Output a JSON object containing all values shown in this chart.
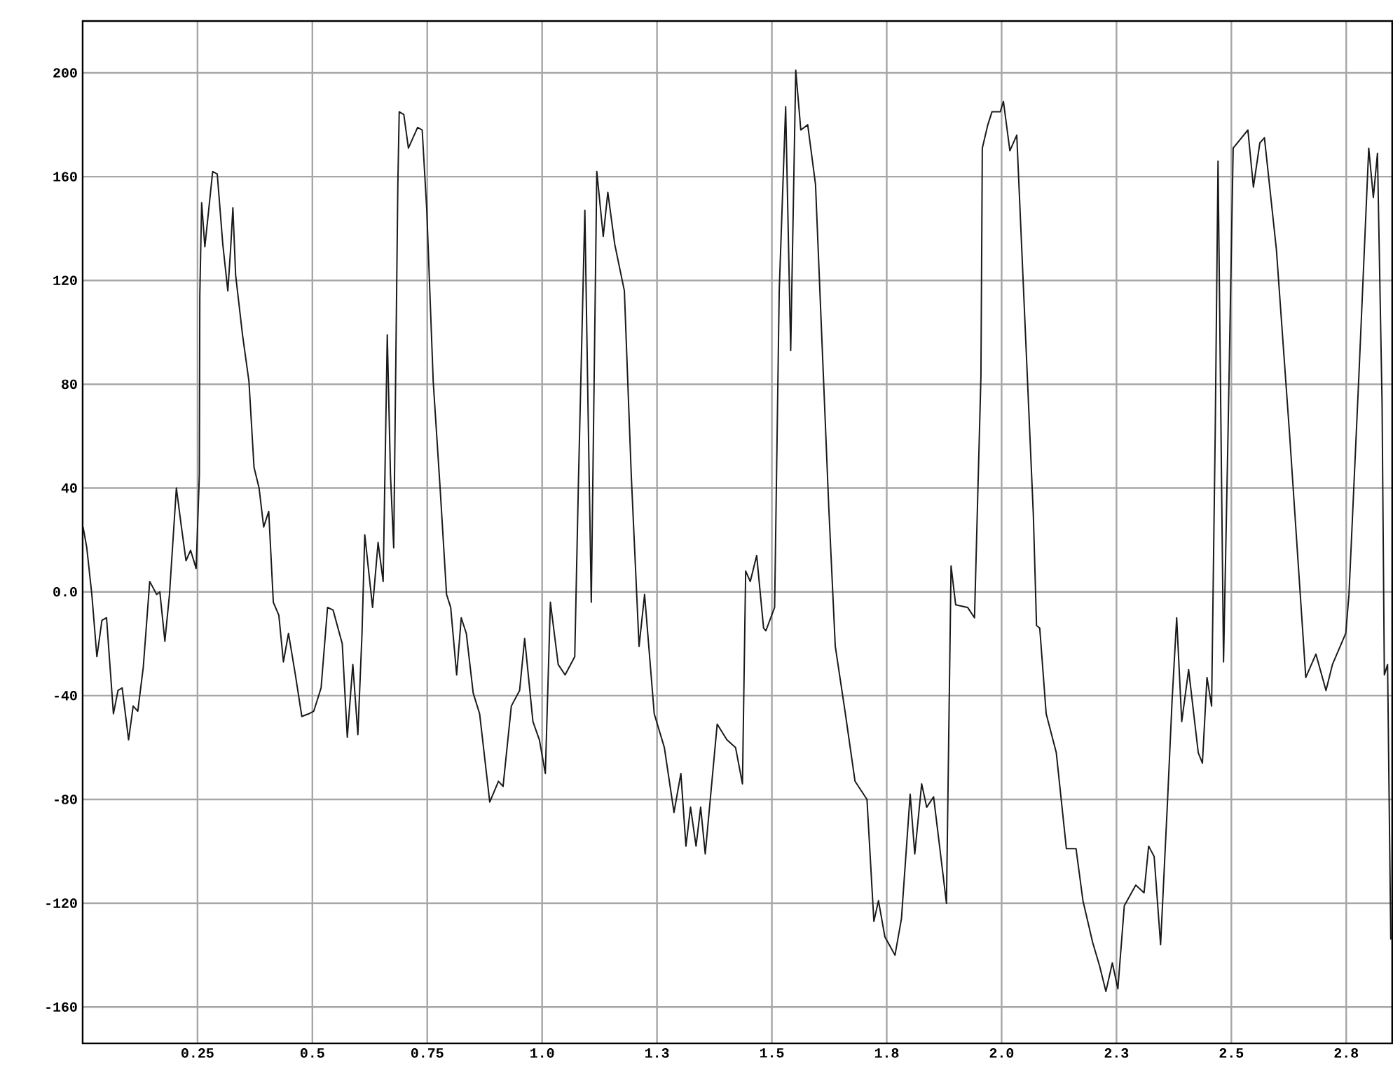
{
  "chart_data": {
    "type": "line",
    "color": "#1a1a1a",
    "grid": true,
    "xlim": [
      0,
      2.85
    ],
    "ylim": [
      -174,
      220
    ],
    "xticks": [
      0.25,
      0.5,
      0.75,
      {
        "value": 1,
        "label": "1.0"
      },
      {
        "value": 1.25,
        "label": "1.3"
      },
      1.5,
      {
        "value": 1.75,
        "label": "1.8"
      },
      {
        "value": 2,
        "label": "2.0"
      },
      {
        "value": 2.25,
        "label": "2.3"
      },
      2.5,
      {
        "value": 2.75,
        "label": "2.8"
      }
    ],
    "yticks": [
      -160,
      -120,
      -80,
      -40,
      {
        "value": 0,
        "label": "0.0"
      },
      40,
      80,
      120,
      160,
      200
    ],
    "x": [
      0.001,
      0.009,
      0.02,
      0.031,
      0.042,
      0.052,
      0.067,
      0.077,
      0.086,
      0.1,
      0.11,
      0.12,
      0.132,
      0.146,
      0.161,
      0.168,
      0.179,
      0.189,
      0.204,
      0.215,
      0.225,
      0.235,
      0.247,
      0.254,
      0.255,
      0.259,
      0.266,
      0.276,
      0.283,
      0.293,
      0.305,
      0.316,
      0.322,
      0.327,
      0.333,
      0.348,
      0.362,
      0.373,
      0.384,
      0.394,
      0.405,
      0.415,
      0.427,
      0.437,
      0.448,
      0.463,
      0.477,
      0.492,
      0.503,
      0.519,
      0.533,
      0.545,
      0.565,
      0.576,
      0.588,
      0.599,
      0.608,
      0.614,
      0.631,
      0.643,
      0.654,
      0.663,
      0.67,
      0.677,
      0.686,
      0.689,
      0.699,
      0.709,
      0.729,
      0.739,
      0.749,
      0.763,
      0.778,
      0.792,
      0.801,
      0.814,
      0.824,
      0.835,
      0.85,
      0.864,
      0.886,
      0.905,
      0.915,
      0.933,
      0.951,
      0.962,
      0.98,
      0.994,
      1.007,
      1.018,
      1.035,
      1.05,
      1.071,
      1.079,
      1.093,
      1.1,
      1.107,
      1.119,
      1.133,
      1.143,
      1.158,
      1.179,
      1.194,
      1.211,
      1.223,
      1.244,
      1.266,
      1.287,
      1.302,
      1.313,
      1.323,
      1.335,
      1.345,
      1.355,
      1.381,
      1.402,
      1.421,
      1.436,
      1.443,
      1.453,
      1.467,
      1.482,
      1.487,
      1.506,
      1.516,
      1.53,
      1.541,
      1.552,
      1.563,
      1.578,
      1.595,
      1.624,
      1.638,
      1.66,
      1.681,
      1.707,
      1.722,
      1.732,
      1.746,
      1.768,
      1.782,
      1.801,
      1.811,
      1.826,
      1.837,
      1.852,
      1.88,
      1.89,
      1.9,
      1.926,
      1.941,
      1.955,
      1.958,
      1.97,
      1.979,
      1.997,
      2.004,
      2.018,
      2.033,
      2.054,
      2.069,
      2.076,
      2.083,
      2.097,
      2.119,
      2.141,
      2.162,
      2.177,
      2.198,
      2.213,
      2.227,
      2.241,
      2.253,
      2.267,
      2.292,
      2.31,
      2.32,
      2.332,
      2.346,
      2.361,
      2.371,
      2.381,
      2.392,
      2.407,
      2.428,
      2.437,
      2.447,
      2.457,
      2.465,
      2.471,
      2.483,
      2.493,
      2.504,
      2.536,
      2.548,
      2.562,
      2.572,
      2.598,
      2.627,
      2.662,
      2.684,
      2.706,
      2.72,
      2.749,
      2.756,
      2.778,
      2.799,
      2.809,
      2.818,
      2.828,
      2.833,
      2.84,
      2.847
    ],
    "values": [
      25,
      17,
      -1,
      -25,
      -11,
      -10,
      -47,
      -38,
      -37,
      -57,
      -44,
      -46,
      -29,
      4,
      -1,
      0,
      -19,
      -1,
      40,
      25,
      12,
      16,
      9,
      45,
      114,
      150,
      133,
      150,
      162,
      161,
      134,
      116,
      132,
      148,
      122,
      99,
      81,
      48,
      40,
      25,
      31,
      -4,
      -9,
      -27,
      -16,
      -32,
      -48,
      -47,
      -46,
      -37,
      -6,
      -7,
      -20,
      -56,
      -28,
      -55,
      -16,
      22,
      -6,
      19,
      4,
      99,
      45,
      17,
      157,
      185,
      184,
      171,
      179,
      178,
      147,
      81,
      40,
      -1,
      -6,
      -32,
      -10,
      -16,
      -39,
      -47,
      -81,
      -73,
      -75,
      -44,
      -38,
      -18,
      -50,
      -57,
      -70,
      -4,
      -28,
      -32,
      -25,
      42,
      147,
      70,
      -4,
      162,
      137,
      154,
      134,
      116,
      45,
      -21,
      -1,
      -47,
      -60,
      -85,
      -70,
      -98,
      -83,
      -98,
      -83,
      -101,
      -51,
      -57,
      -60,
      -74,
      8,
      4,
      14,
      -14,
      -15,
      -6,
      116,
      187,
      93,
      201,
      178,
      180,
      157,
      32,
      -21,
      -47,
      -73,
      -80,
      -127,
      -119,
      -133,
      -140,
      -126,
      -78,
      -101,
      -74,
      -83,
      -79,
      -120,
      10,
      -5,
      -6,
      -10,
      83,
      171,
      180,
      185,
      185,
      189,
      170,
      176,
      91,
      30,
      -13,
      -14,
      -47,
      -62,
      -99,
      -99,
      -119,
      -135,
      -144,
      -154,
      -143,
      -153,
      -121,
      -113,
      -116,
      -98,
      -102,
      -136,
      -81,
      -42,
      -10,
      -50,
      -30,
      -62,
      -66,
      -33,
      -44,
      63,
      166,
      -27,
      63,
      171,
      178,
      156,
      173,
      175,
      132,
      60,
      -33,
      -24,
      -38,
      -28,
      -16,
      -1,
      85,
      171,
      152,
      169,
      73,
      -32,
      -28,
      -134
    ]
  }
}
